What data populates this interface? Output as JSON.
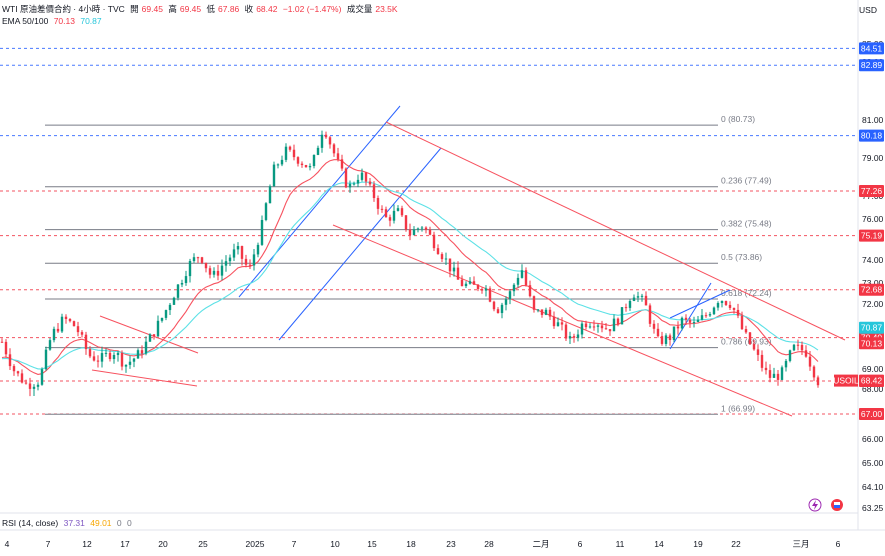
{
  "header": {
    "symbol": "WTI 原油差價合約 · 4小時 · TVC",
    "open_label": "開",
    "open": "69.45",
    "high_label": "高",
    "high": "69.45",
    "low_label": "低",
    "low": "67.86",
    "close_label": "收",
    "close": "68.42",
    "change": "−1.02 (−1.47%)",
    "volume_label": "成交量",
    "volume": "23.5K"
  },
  "ema_legend": {
    "label": "EMA 50/100",
    "v1": "70.13",
    "v2": "70.87"
  },
  "rsi_legend": {
    "label": "RSI (14, close)",
    "v1": "37.31",
    "v2": "49.01",
    "z1": "0",
    "z2": "0"
  },
  "currency": "USD",
  "colors": {
    "up": "#089981",
    "down": "#f23645",
    "ema50": "#f7525f",
    "ema100": "#5ce1e6",
    "channel_up": "#2962ff",
    "channel_down": "#f7525f",
    "fib": "#787b86",
    "blue_line": "#2962ff",
    "red_line": "#f23645"
  },
  "chart_data": {
    "type": "candlestick",
    "y_axis_ticks": [
      "85.00",
      "83.00",
      "81.00",
      "79.00",
      "77.00",
      "76.00",
      "74.00",
      "73.00",
      "72.00",
      "71.00",
      "70.00",
      "69.00",
      "68.00",
      "67.00",
      "66.00",
      "65.00",
      "64.10",
      "63.25"
    ],
    "x_axis_ticks": [
      "4",
      "7",
      "12",
      "17",
      "20",
      "25",
      "2025",
      "7",
      "10",
      "15",
      "18",
      "23",
      "28",
      "二月",
      "6",
      "11",
      "14",
      "19",
      "22",
      "三月",
      "6"
    ],
    "horizontal_levels": [
      {
        "value": 84.51,
        "label": "84.51",
        "style": "blue"
      },
      {
        "value": 82.89,
        "label": "82.89",
        "style": "blue"
      },
      {
        "value": 80.18,
        "label": "80.18",
        "style": "blue"
      },
      {
        "value": 77.26,
        "label": "77.26",
        "style": "red"
      },
      {
        "value": 75.19,
        "label": "75.19",
        "style": "red"
      },
      {
        "value": 72.68,
        "label": "72.68",
        "style": "red"
      },
      {
        "value": 70.4,
        "label": "70.40",
        "style": "red"
      },
      {
        "value": 68.4,
        "label": "68.40",
        "style": "red"
      },
      {
        "value": 67.0,
        "label": "67.00",
        "style": "red"
      }
    ],
    "price_tags": [
      {
        "value": 70.87,
        "label": "70.87",
        "color": "#26c6da"
      },
      {
        "value": 70.13,
        "label": "70.13",
        "color": "#f23645"
      },
      {
        "value": 68.42,
        "label": "68.42",
        "color": "#f23645",
        "symbol": "USOIL"
      }
    ],
    "fibonacci": [
      {
        "ratio": "0",
        "value": 80.73,
        "label": "0 (80.73)"
      },
      {
        "ratio": "0.236",
        "value": 77.49,
        "label": "0.236 (77.49)"
      },
      {
        "ratio": "0.382",
        "value": 75.48,
        "label": "0.382 (75.48)"
      },
      {
        "ratio": "0.5",
        "value": 73.86,
        "label": "0.5 (73.86)"
      },
      {
        "ratio": "0.618",
        "value": 72.24,
        "label": "0.618 (72.24)"
      },
      {
        "ratio": "0.786",
        "value": 69.93,
        "label": "0.786 (69.93)"
      },
      {
        "ratio": "1",
        "value": 66.99,
        "label": "1 (66.99)"
      }
    ],
    "close_path": [
      70.2,
      68.9,
      68.2,
      68.4,
      70.5,
      71.3,
      70.9,
      69.6,
      69.4,
      69.8,
      69.2,
      69.6,
      70.4,
      71.4,
      72.6,
      73.7,
      74.3,
      73.2,
      73.9,
      74.5,
      73.5,
      75.6,
      78.4,
      79.4,
      78.9,
      78.4,
      80.7,
      79.0,
      77.4,
      78.2,
      77.1,
      76.0,
      76.3,
      75.3,
      75.7,
      74.8,
      73.9,
      73.0,
      72.8,
      72.9,
      71.7,
      72.4,
      73.7,
      71.6,
      71.6,
      71.0,
      70.2,
      71.1,
      71.2,
      70.8,
      71.4,
      72.6,
      72.0,
      70.2,
      70.4,
      71.2,
      71.0,
      71.5,
      72.3,
      72.0,
      70.6,
      69.6,
      68.6,
      68.7,
      69.9,
      69.8,
      68.4
    ]
  }
}
